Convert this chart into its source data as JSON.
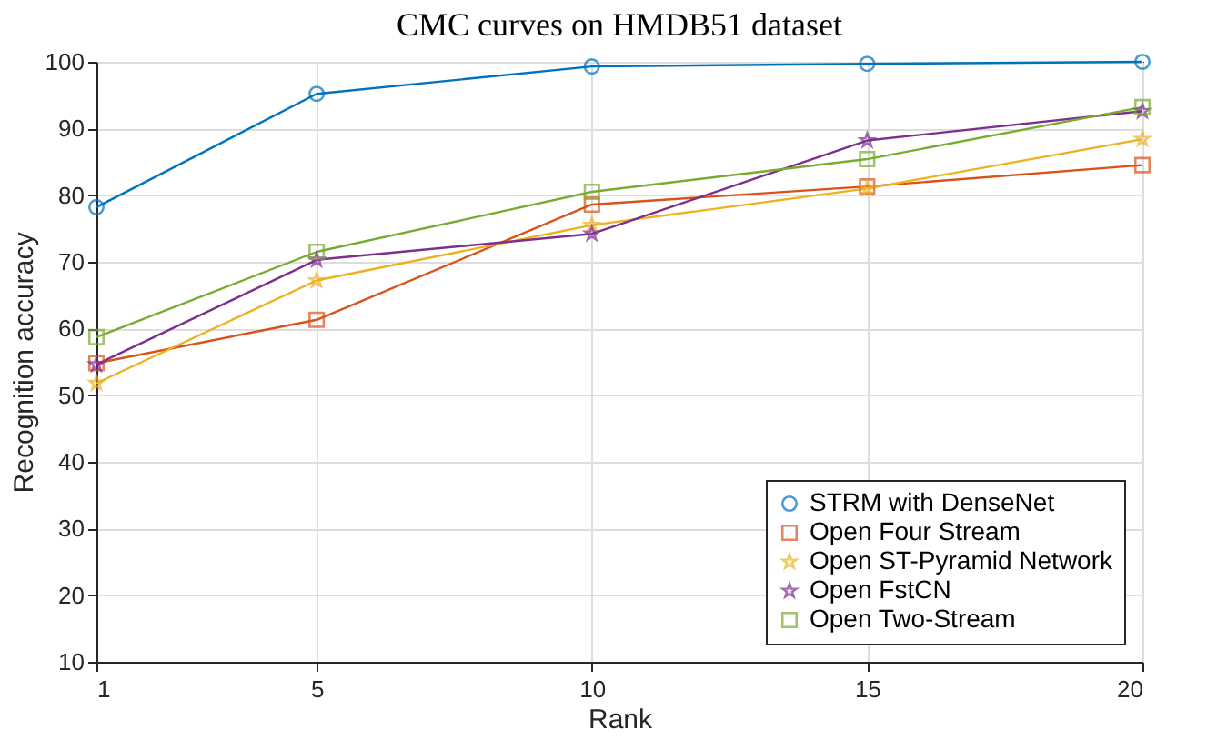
{
  "chart_data": {
    "type": "line",
    "title": "CMC curves on HMDB51 dataset",
    "xlabel": "Rank",
    "ylabel": "Recognition accuracy",
    "x": [
      1,
      5,
      10,
      15,
      20
    ],
    "series": [
      {
        "name": "STRM with DenseNet",
        "color": "#0072bd",
        "marker": "circle",
        "values": [
          78.2,
          95.2,
          99.3,
          99.7,
          100
        ]
      },
      {
        "name": "Open Four Stream",
        "color": "#d95319",
        "marker": "square",
        "values": [
          54.8,
          61.3,
          78.6,
          81.3,
          84.5
        ]
      },
      {
        "name": "Open ST-Pyramid Network",
        "color": "#edb120",
        "marker": "star",
        "values": [
          51.8,
          67.2,
          75.5,
          81.0,
          88.4
        ]
      },
      {
        "name": "Open FstCN",
        "color": "#7e2f8e",
        "marker": "star",
        "values": [
          54.6,
          70.3,
          74.2,
          88.2,
          92.6
        ]
      },
      {
        "name": "Open Two-Stream",
        "color": "#77ac30",
        "marker": "square",
        "values": [
          58.7,
          71.5,
          80.5,
          85.4,
          93.2
        ]
      }
    ],
    "xlim": [
      1,
      20
    ],
    "xticks": [
      1,
      5,
      10,
      15,
      20
    ],
    "ylim": [
      10,
      100
    ],
    "yticks": [
      10,
      20,
      30,
      40,
      50,
      60,
      70,
      80,
      90,
      100
    ],
    "grid": true,
    "legend": "bottom right",
    "line_style": "solid"
  }
}
